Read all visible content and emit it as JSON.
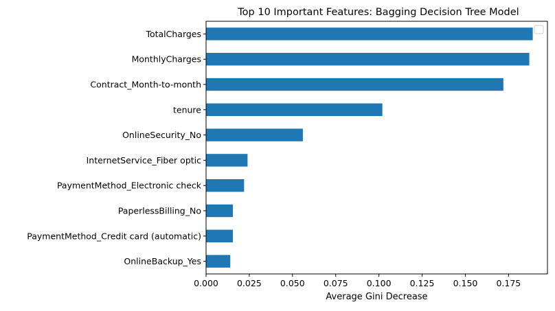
{
  "chart_data": {
    "type": "bar",
    "orientation": "horizontal",
    "title": "Top 10 Important Features: Bagging Decision Tree Model",
    "xlabel": "Average Gini Decrease",
    "ylabel": "",
    "xlim": [
      0,
      0.1975
    ],
    "xticks": [
      0.0,
      0.025,
      0.05,
      0.075,
      0.1,
      0.125,
      0.15,
      0.175
    ],
    "xtick_labels": [
      "0.000",
      "0.025",
      "0.050",
      "0.075",
      "0.100",
      "0.125",
      "0.150",
      "0.175"
    ],
    "bar_color": "#1f77b4",
    "grid": false,
    "legend": {
      "placement": "top-right",
      "entries": []
    },
    "categories": [
      "TotalCharges",
      "MonthlyCharges",
      "Contract_Month-to-month",
      "tenure",
      "OnlineSecurity_No",
      "InternetService_Fiber optic",
      "PaymentMethod_Electronic check",
      "PaperlessBilling_No",
      "PaymentMethod_Credit card (automatic)",
      "OnlineBackup_Yes"
    ],
    "values": [
      0.189,
      0.187,
      0.172,
      0.102,
      0.056,
      0.024,
      0.022,
      0.0155,
      0.0155,
      0.014
    ]
  }
}
